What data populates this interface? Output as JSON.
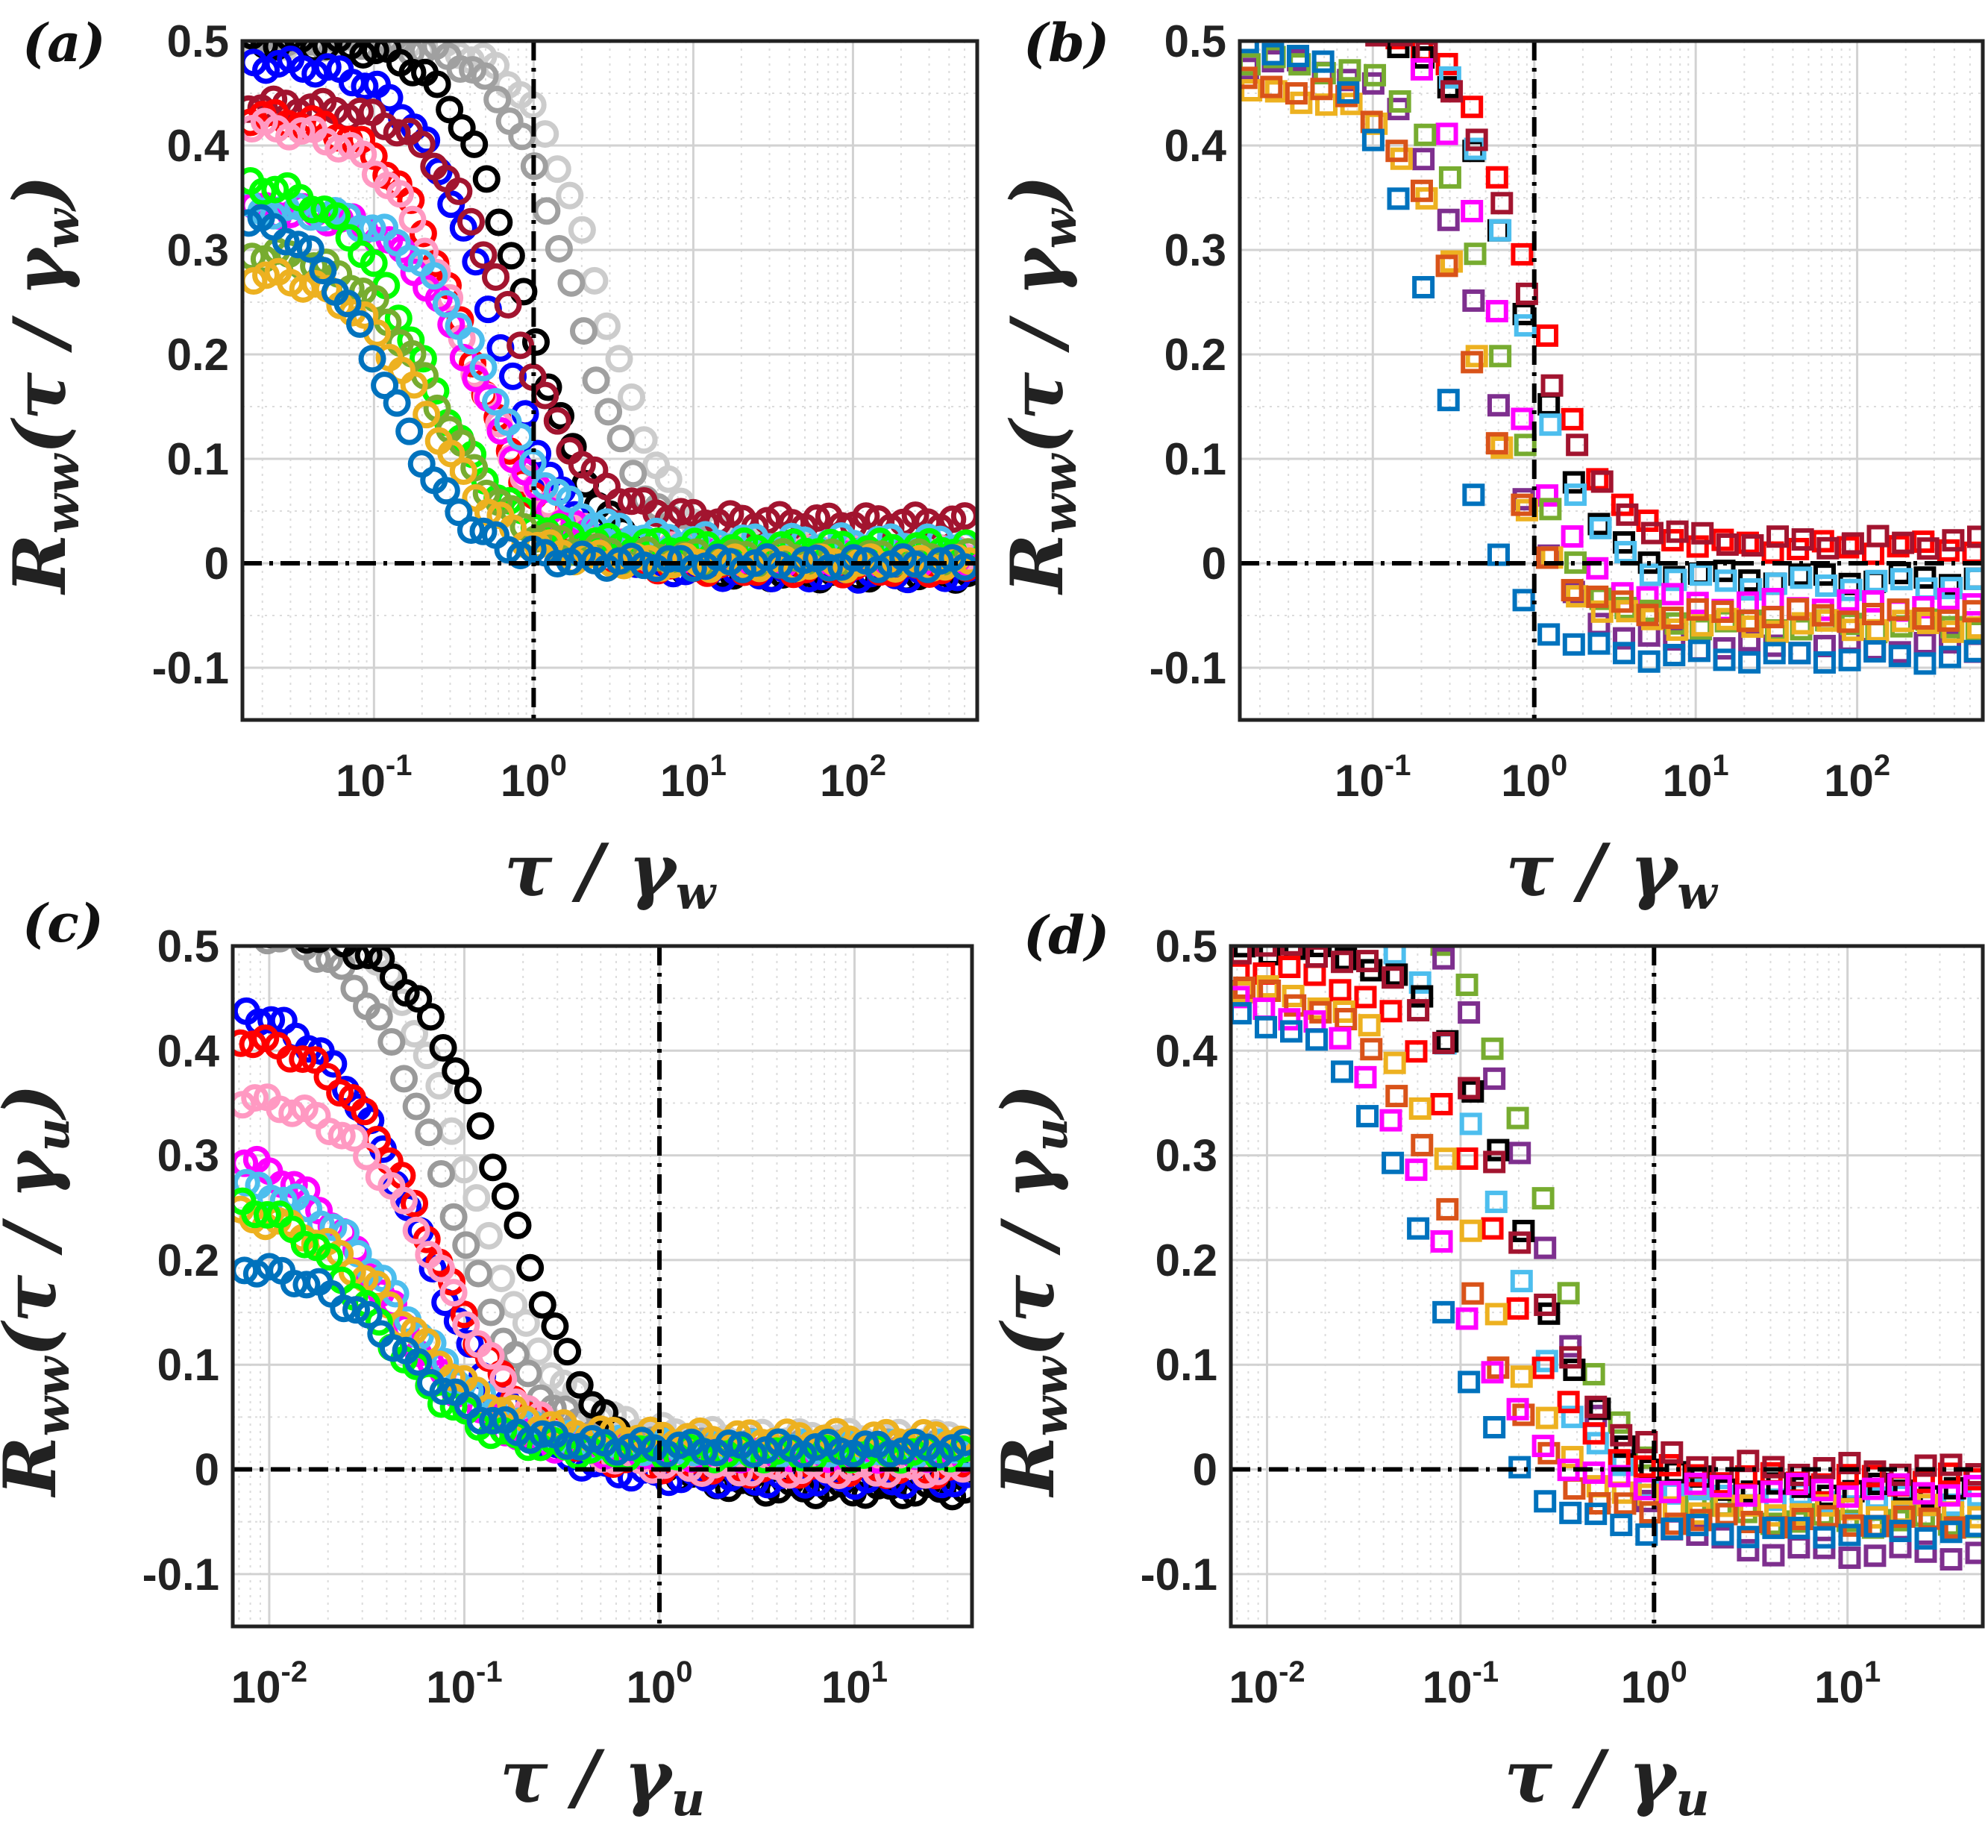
{
  "chart_data": [
    {
      "panel_label": "(a)",
      "type": "scatter",
      "marker": "circle",
      "xscale": "log",
      "xlim": [
        0.015,
        600
      ],
      "ylim": [
        -0.15,
        0.5
      ],
      "xticks": [
        0.1,
        1,
        10,
        100
      ],
      "xtick_labels": [
        {
          "base": "10",
          "exp": "-1"
        },
        {
          "base": "10",
          "exp": "0"
        },
        {
          "base": "10",
          "exp": "1"
        },
        {
          "base": "10",
          "exp": "2"
        }
      ],
      "yticks": [
        -0.1,
        0,
        0.1,
        0.2,
        0.3,
        0.4,
        0.5
      ],
      "ytick_labels": [
        "-0.1",
        "0",
        "0.1",
        "0.2",
        "0.3",
        "0.4",
        "0.5"
      ],
      "ylabel": {
        "main": "R",
        "sub": "ww",
        "arg_open": "(τ / γ",
        "arg_sub": "w",
        "arg_close": ")"
      },
      "xlabel": {
        "main": "τ / γ",
        "sub": "w"
      },
      "vline_x": 1,
      "hline_y": 0,
      "series": [
        {
          "name": "gray",
          "color": "#cccccc",
          "y0": 0.5,
          "x50": 2.6,
          "k": 1.0,
          "yinf": 0.01
        },
        {
          "name": "darkgray",
          "color": "#a0a0a0",
          "y0": 0.5,
          "x50": 1.8,
          "k": 1.0,
          "yinf": 0.005
        },
        {
          "name": "black",
          "color": "#000000",
          "y0": 0.5,
          "x50": 0.9,
          "k": 0.95,
          "yinf": -0.01
        },
        {
          "name": "blue",
          "color": "#0000ff",
          "y0": 0.48,
          "x50": 0.55,
          "k": 0.9,
          "yinf": -0.01
        },
        {
          "name": "darkred",
          "color": "#a2142f",
          "y0": 0.44,
          "x50": 0.7,
          "k": 0.9,
          "yinf": 0.04
        },
        {
          "name": "red",
          "color": "#ff0000",
          "y0": 0.43,
          "x50": 0.38,
          "k": 0.9,
          "yinf": -0.005
        },
        {
          "name": "pink",
          "color": "#ff99c2",
          "y0": 0.42,
          "x50": 0.36,
          "k": 0.9,
          "yinf": 0.01
        },
        {
          "name": "magenta",
          "color": "#ff00ff",
          "y0": 0.34,
          "x50": 0.45,
          "k": 0.9,
          "yinf": 0.005
        },
        {
          "name": "lightblue",
          "color": "#4dbeee",
          "y0": 0.34,
          "x50": 0.5,
          "k": 0.9,
          "yinf": 0.02
        },
        {
          "name": "green",
          "color": "#00ff00",
          "y0": 0.37,
          "x50": 0.2,
          "k": 0.85,
          "yinf": 0.015
        },
        {
          "name": "olive",
          "color": "#77ac30",
          "y0": 0.3,
          "x50": 0.25,
          "k": 0.9,
          "yinf": 0.005
        },
        {
          "name": "orange",
          "color": "#edb120",
          "y0": 0.28,
          "x50": 0.22,
          "k": 0.9,
          "yinf": 0.0
        },
        {
          "name": "steelblue",
          "color": "#0072bd",
          "y0": 0.34,
          "x50": 0.12,
          "k": 0.9,
          "yinf": 0.0
        }
      ]
    },
    {
      "panel_label": "(b)",
      "type": "scatter",
      "marker": "square",
      "xscale": "log",
      "xlim": [
        0.015,
        600
      ],
      "ylim": [
        -0.15,
        0.5
      ],
      "xticks": [
        0.1,
        1,
        10,
        100
      ],
      "xtick_labels": [
        {
          "base": "10",
          "exp": "-1"
        },
        {
          "base": "10",
          "exp": "0"
        },
        {
          "base": "10",
          "exp": "1"
        },
        {
          "base": "10",
          "exp": "2"
        }
      ],
      "yticks": [
        -0.1,
        0,
        0.1,
        0.2,
        0.3,
        0.4,
        0.5
      ],
      "ytick_labels": [
        "-0.1",
        "0",
        "0.1",
        "0.2",
        "0.3",
        "0.4",
        "0.5"
      ],
      "ylabel": {
        "main": "R",
        "sub": "ww",
        "arg_open": "(τ / γ",
        "arg_sub": "w",
        "arg_close": ")"
      },
      "xlabel": {
        "main": "τ / γ",
        "sub": "w"
      },
      "vline_x": 1,
      "hline_y": 0,
      "series": [
        {
          "name": "red",
          "color": "#ff0000",
          "y0": 0.52,
          "x50": 0.95,
          "k": 1.0,
          "yinf": 0.015
        },
        {
          "name": "black",
          "color": "#000000",
          "y0": 0.52,
          "x50": 0.8,
          "k": 1.0,
          "yinf": -0.015
        },
        {
          "name": "lightblue",
          "color": "#4dbeee",
          "y0": 0.55,
          "x50": 0.75,
          "k": 1.0,
          "yinf": -0.02
        },
        {
          "name": "darkred",
          "color": "#a2142f",
          "y0": 0.52,
          "x50": 0.85,
          "k": 1.0,
          "yinf": 0.02
        },
        {
          "name": "magenta",
          "color": "#ff00ff",
          "y0": 0.55,
          "x50": 0.55,
          "k": 1.0,
          "yinf": -0.04
        },
        {
          "name": "purple",
          "color": "#7e2f8e",
          "y0": 0.48,
          "x50": 0.5,
          "k": 1.0,
          "yinf": -0.08
        },
        {
          "name": "olive",
          "color": "#77ac30",
          "y0": 0.48,
          "x50": 0.6,
          "k": 1.0,
          "yinf": -0.06
        },
        {
          "name": "orange",
          "color": "#edb120",
          "y0": 0.45,
          "x50": 0.45,
          "k": 1.0,
          "yinf": -0.06
        },
        {
          "name": "darkorange",
          "color": "#d95319",
          "y0": 0.46,
          "x50": 0.4,
          "k": 1.0,
          "yinf": -0.05
        },
        {
          "name": "steelblue",
          "color": "#0072bd",
          "y0": 0.5,
          "x50": 0.25,
          "k": 1.0,
          "yinf": -0.09
        }
      ]
    },
    {
      "panel_label": "(c)",
      "type": "scatter",
      "marker": "circle",
      "xscale": "log",
      "xlim": [
        0.0065,
        40
      ],
      "ylim": [
        -0.15,
        0.5
      ],
      "xticks": [
        0.01,
        0.1,
        1,
        10
      ],
      "xtick_labels": [
        {
          "base": "10",
          "exp": "-2"
        },
        {
          "base": "10",
          "exp": "-1"
        },
        {
          "base": "10",
          "exp": "0"
        },
        {
          "base": "10",
          "exp": "1"
        }
      ],
      "yticks": [
        -0.1,
        0,
        0.1,
        0.2,
        0.3,
        0.4,
        0.5
      ],
      "ytick_labels": [
        "-0.1",
        "0",
        "0.1",
        "0.2",
        "0.3",
        "0.4",
        "0.5"
      ],
      "ylabel": {
        "main": "R",
        "sub": "ww",
        "arg_open": "(τ / γ",
        "arg_sub": "u",
        "arg_close": ")"
      },
      "xlabel": {
        "main": "τ / γ",
        "sub": "u"
      },
      "vline_x": 1,
      "hline_y": 0,
      "series": [
        {
          "name": "lightgray",
          "color": "#cccccc",
          "y0": 0.55,
          "x50": 0.1,
          "k": 1.0,
          "yinf": 0.03
        },
        {
          "name": "darkgray",
          "color": "#9a9a9a",
          "y0": 0.52,
          "x50": 0.08,
          "k": 1.0,
          "yinf": 0.02
        },
        {
          "name": "black",
          "color": "#000000",
          "y0": 0.52,
          "x50": 0.17,
          "k": 0.9,
          "yinf": -0.02
        },
        {
          "name": "blue",
          "color": "#0000ff",
          "y0": 0.45,
          "x50": 0.06,
          "k": 0.9,
          "yinf": -0.01
        },
        {
          "name": "red",
          "color": "#ff0000",
          "y0": 0.42,
          "x50": 0.07,
          "k": 0.9,
          "yinf": 0.0
        },
        {
          "name": "pink",
          "color": "#ff99c2",
          "y0": 0.36,
          "x50": 0.08,
          "k": 0.9,
          "yinf": 0.0
        },
        {
          "name": "magenta",
          "color": "#ff00ff",
          "y0": 0.31,
          "x50": 0.04,
          "k": 0.9,
          "yinf": 0.015
        },
        {
          "name": "lightblue",
          "color": "#4dbeee",
          "y0": 0.28,
          "x50": 0.05,
          "k": 0.9,
          "yinf": 0.02
        },
        {
          "name": "orange",
          "color": "#edb120",
          "y0": 0.25,
          "x50": 0.05,
          "k": 0.9,
          "yinf": 0.03
        },
        {
          "name": "green",
          "color": "#00ff00",
          "y0": 0.27,
          "x50": 0.035,
          "k": 0.9,
          "yinf": 0.015
        },
        {
          "name": "steelblue",
          "color": "#0072bd",
          "y0": 0.2,
          "x50": 0.05,
          "k": 0.9,
          "yinf": 0.02
        }
      ]
    },
    {
      "panel_label": "(d)",
      "type": "scatter",
      "marker": "square",
      "xscale": "log",
      "xlim": [
        0.0065,
        50
      ],
      "ylim": [
        -0.15,
        0.5
      ],
      "xticks": [
        0.01,
        0.1,
        1,
        10
      ],
      "xtick_labels": [
        {
          "base": "10",
          "exp": "-2"
        },
        {
          "base": "10",
          "exp": "-1"
        },
        {
          "base": "10",
          "exp": "0"
        },
        {
          "base": "10",
          "exp": "1"
        }
      ],
      "yticks": [
        -0.1,
        0,
        0.1,
        0.2,
        0.3,
        0.4,
        0.5
      ],
      "ytick_labels": [
        "-0.1",
        "0",
        "0.1",
        "0.2",
        "0.3",
        "0.4",
        "0.5"
      ],
      "ylabel": {
        "main": "R",
        "sub": "ww",
        "arg_open": "(τ / γ",
        "arg_sub": "u",
        "arg_close": ")"
      },
      "xlabel": {
        "main": "τ / γ",
        "sub": "u"
      },
      "vline_x": 1,
      "hline_y": 0,
      "series": [
        {
          "name": "olive",
          "color": "#77ac30",
          "y0": 0.55,
          "x50": 0.27,
          "k": 1.0,
          "yinf": -0.05
        },
        {
          "name": "purple",
          "color": "#7e2f8e",
          "y0": 0.55,
          "x50": 0.25,
          "k": 1.0,
          "yinf": -0.08
        },
        {
          "name": "lightblue",
          "color": "#4dbeee",
          "y0": 0.55,
          "x50": 0.15,
          "k": 1.0,
          "yinf": -0.03
        },
        {
          "name": "black",
          "color": "#000000",
          "y0": 0.5,
          "x50": 0.2,
          "k": 1.0,
          "yinf": -0.02
        },
        {
          "name": "red",
          "color": "#ff0000",
          "y0": 0.48,
          "x50": 0.14,
          "k": 1.0,
          "yinf": -0.01
        },
        {
          "name": "darkred",
          "color": "#a2142f",
          "y0": 0.5,
          "x50": 0.18,
          "k": 1.0,
          "yinf": 0.0
        },
        {
          "name": "orange",
          "color": "#edb120",
          "y0": 0.46,
          "x50": 0.12,
          "k": 1.0,
          "yinf": -0.04
        },
        {
          "name": "darkorange",
          "color": "#d95319",
          "y0": 0.46,
          "x50": 0.1,
          "k": 1.0,
          "yinf": -0.05
        },
        {
          "name": "magenta",
          "color": "#ff00ff",
          "y0": 0.45,
          "x50": 0.08,
          "k": 1.0,
          "yinf": -0.02
        },
        {
          "name": "steelblue",
          "color": "#0072bd",
          "y0": 0.44,
          "x50": 0.07,
          "k": 1.0,
          "yinf": -0.06
        }
      ]
    }
  ]
}
